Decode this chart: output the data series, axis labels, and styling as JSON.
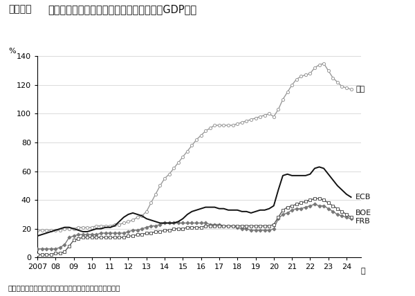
{
  "title_bracket": "［図表］",
  "title_main": "日米英欧中銀のバランスシート規模（名盪GDP比）",
  "ylabel": "%",
  "source": "（出所）　三井住友トラスト・アセットマネジメント作成",
  "x_suffix": "年",
  "xlim": [
    2007.0,
    2024.8
  ],
  "ylim": [
    0,
    140
  ],
  "yticks": [
    0,
    20,
    40,
    60,
    80,
    100,
    120,
    140
  ],
  "xticks": [
    2007,
    2008,
    2009,
    2010,
    2011,
    2012,
    2013,
    2014,
    2015,
    2016,
    2017,
    2018,
    2019,
    2020,
    2021,
    2022,
    2023,
    2024
  ],
  "xtick_labels": [
    "2007",
    "08",
    "09",
    "10",
    "11",
    "12",
    "13",
    "14",
    "15",
    "16",
    "17",
    "18",
    "19",
    "20",
    "21",
    "22",
    "23",
    "24"
  ],
  "background_color": "#ffffff",
  "series": {
    "BOJ": {
      "label": "日銀",
      "color": "#999999",
      "linewidth": 1.0,
      "marker": "o",
      "markersize": 3.0,
      "markerfacecolor": "white",
      "markeredgecolor": "#999999",
      "markeredgewidth": 0.7,
      "x": [
        2007.0,
        2007.25,
        2007.5,
        2007.75,
        2008.0,
        2008.25,
        2008.5,
        2008.75,
        2009.0,
        2009.25,
        2009.5,
        2009.75,
        2010.0,
        2010.25,
        2010.5,
        2010.75,
        2011.0,
        2011.25,
        2011.5,
        2011.75,
        2012.0,
        2012.25,
        2012.5,
        2012.75,
        2013.0,
        2013.25,
        2013.5,
        2013.75,
        2014.0,
        2014.25,
        2014.5,
        2014.75,
        2015.0,
        2015.25,
        2015.5,
        2015.75,
        2016.0,
        2016.25,
        2016.5,
        2016.75,
        2017.0,
        2017.25,
        2017.5,
        2017.75,
        2018.0,
        2018.25,
        2018.5,
        2018.75,
        2019.0,
        2019.25,
        2019.5,
        2019.75,
        2020.0,
        2020.25,
        2020.5,
        2020.75,
        2021.0,
        2021.25,
        2021.5,
        2021.75,
        2022.0,
        2022.25,
        2022.5,
        2022.75,
        2023.0,
        2023.25,
        2023.5,
        2023.75,
        2024.0,
        2024.25
      ],
      "y": [
        19,
        19,
        19,
        19,
        19,
        19,
        20,
        20,
        20,
        21,
        21,
        21,
        21,
        22,
        22,
        22,
        22,
        23,
        23,
        24,
        25,
        26,
        28,
        29,
        32,
        38,
        44,
        50,
        55,
        58,
        62,
        66,
        70,
        74,
        78,
        82,
        85,
        88,
        90,
        92,
        92,
        92,
        92,
        92,
        93,
        94,
        95,
        96,
        97,
        98,
        99,
        100,
        98,
        103,
        110,
        115,
        120,
        124,
        126,
        127,
        128,
        132,
        134,
        135,
        130,
        125,
        122,
        119,
        118,
        117
      ]
    },
    "ECB": {
      "label": "ECB",
      "color": "#111111",
      "linewidth": 1.4,
      "marker": null,
      "x": [
        2007.0,
        2007.25,
        2007.5,
        2007.75,
        2008.0,
        2008.25,
        2008.5,
        2008.75,
        2009.0,
        2009.25,
        2009.5,
        2009.75,
        2010.0,
        2010.25,
        2010.5,
        2010.75,
        2011.0,
        2011.25,
        2011.5,
        2011.75,
        2012.0,
        2012.25,
        2012.5,
        2012.75,
        2013.0,
        2013.25,
        2013.5,
        2013.75,
        2014.0,
        2014.25,
        2014.5,
        2014.75,
        2015.0,
        2015.25,
        2015.5,
        2015.75,
        2016.0,
        2016.25,
        2016.5,
        2016.75,
        2017.0,
        2017.25,
        2017.5,
        2017.75,
        2018.0,
        2018.25,
        2018.5,
        2018.75,
        2019.0,
        2019.25,
        2019.5,
        2019.75,
        2020.0,
        2020.25,
        2020.5,
        2020.75,
        2021.0,
        2021.25,
        2021.5,
        2021.75,
        2022.0,
        2022.25,
        2022.5,
        2022.75,
        2023.0,
        2023.25,
        2023.5,
        2023.75,
        2024.0,
        2024.25
      ],
      "y": [
        15,
        16,
        17,
        18,
        19,
        20,
        21,
        21,
        20,
        19,
        18,
        18,
        19,
        20,
        20,
        21,
        21,
        22,
        25,
        28,
        30,
        31,
        30,
        29,
        27,
        26,
        25,
        24,
        24,
        24,
        24,
        25,
        27,
        30,
        32,
        33,
        34,
        35,
        35,
        35,
        34,
        34,
        33,
        33,
        33,
        32,
        32,
        31,
        32,
        33,
        33,
        34,
        36,
        47,
        57,
        58,
        57,
        57,
        57,
        57,
        58,
        62,
        63,
        62,
        58,
        54,
        50,
        47,
        44,
        42
      ]
    },
    "BOE": {
      "label": "BOE",
      "color": "#555555",
      "linewidth": 1.0,
      "marker": "s",
      "markersize": 3.0,
      "markerfacecolor": "white",
      "markeredgecolor": "#555555",
      "markeredgewidth": 0.7,
      "x": [
        2007.0,
        2007.25,
        2007.5,
        2007.75,
        2008.0,
        2008.25,
        2008.5,
        2008.75,
        2009.0,
        2009.25,
        2009.5,
        2009.75,
        2010.0,
        2010.25,
        2010.5,
        2010.75,
        2011.0,
        2011.25,
        2011.5,
        2011.75,
        2012.0,
        2012.25,
        2012.5,
        2012.75,
        2013.0,
        2013.25,
        2013.5,
        2013.75,
        2014.0,
        2014.25,
        2014.5,
        2014.75,
        2015.0,
        2015.25,
        2015.5,
        2015.75,
        2016.0,
        2016.25,
        2016.5,
        2016.75,
        2017.0,
        2017.25,
        2017.5,
        2017.75,
        2018.0,
        2018.25,
        2018.5,
        2018.75,
        2019.0,
        2019.25,
        2019.5,
        2019.75,
        2020.0,
        2020.25,
        2020.5,
        2020.75,
        2021.0,
        2021.25,
        2021.5,
        2021.75,
        2022.0,
        2022.25,
        2022.5,
        2022.75,
        2023.0,
        2023.25,
        2023.5,
        2023.75,
        2024.0,
        2024.25
      ],
      "y": [
        2,
        2,
        2,
        2,
        3,
        3,
        4,
        8,
        12,
        13,
        14,
        14,
        14,
        14,
        14,
        14,
        14,
        14,
        14,
        14,
        15,
        15,
        16,
        16,
        17,
        17,
        18,
        18,
        19,
        19,
        20,
        20,
        20,
        21,
        21,
        21,
        21,
        22,
        22,
        22,
        22,
        22,
        22,
        22,
        22,
        22,
        22,
        22,
        22,
        22,
        22,
        22,
        23,
        28,
        33,
        35,
        36,
        37,
        38,
        39,
        40,
        41,
        41,
        40,
        38,
        36,
        34,
        32,
        30,
        28
      ]
    },
    "FRB": {
      "label": "FRB",
      "color": "#777777",
      "linewidth": 1.0,
      "marker": "D",
      "markersize": 2.5,
      "markerfacecolor": "#777777",
      "markeredgecolor": "#777777",
      "markeredgewidth": 0.7,
      "x": [
        2007.0,
        2007.25,
        2007.5,
        2007.75,
        2008.0,
        2008.25,
        2008.5,
        2008.75,
        2009.0,
        2009.25,
        2009.5,
        2009.75,
        2010.0,
        2010.25,
        2010.5,
        2010.75,
        2011.0,
        2011.25,
        2011.5,
        2011.75,
        2012.0,
        2012.25,
        2012.5,
        2012.75,
        2013.0,
        2013.25,
        2013.5,
        2013.75,
        2014.0,
        2014.25,
        2014.5,
        2014.75,
        2015.0,
        2015.25,
        2015.5,
        2015.75,
        2016.0,
        2016.25,
        2016.5,
        2016.75,
        2017.0,
        2017.25,
        2017.5,
        2017.75,
        2018.0,
        2018.25,
        2018.5,
        2018.75,
        2019.0,
        2019.25,
        2019.5,
        2019.75,
        2020.0,
        2020.25,
        2020.5,
        2020.75,
        2021.0,
        2021.25,
        2021.5,
        2021.75,
        2022.0,
        2022.25,
        2022.5,
        2022.75,
        2023.0,
        2023.25,
        2023.5,
        2023.75,
        2024.0,
        2024.25
      ],
      "y": [
        6,
        6,
        6,
        6,
        6,
        7,
        9,
        14,
        15,
        16,
        16,
        16,
        16,
        16,
        17,
        17,
        17,
        17,
        17,
        17,
        18,
        19,
        19,
        20,
        21,
        22,
        22,
        23,
        24,
        24,
        24,
        24,
        24,
        24,
        24,
        24,
        24,
        24,
        23,
        23,
        23,
        22,
        22,
        22,
        21,
        20,
        20,
        19,
        19,
        19,
        19,
        19,
        20,
        27,
        30,
        31,
        33,
        34,
        34,
        35,
        36,
        37,
        36,
        36,
        34,
        32,
        30,
        29,
        28,
        27
      ]
    }
  }
}
